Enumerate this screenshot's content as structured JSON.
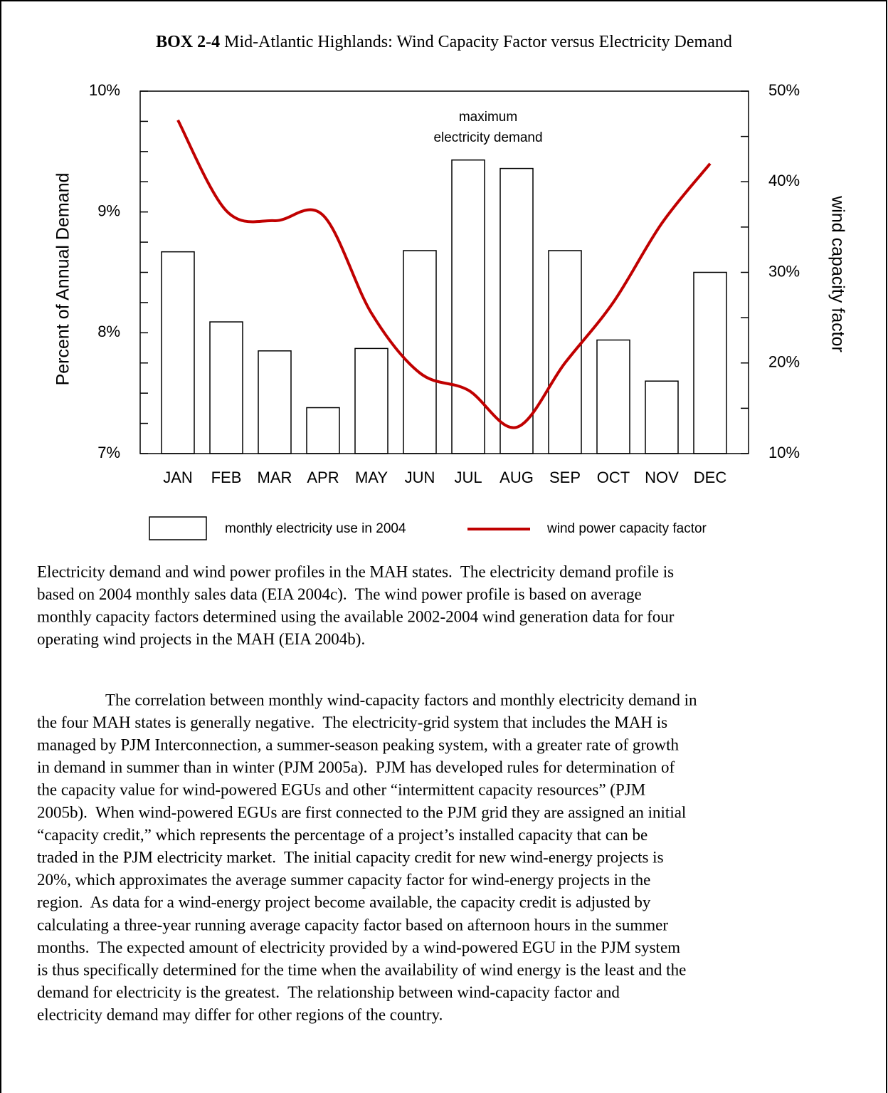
{
  "chart_data": {
    "type": "bar_line",
    "title_label": "BOX 2-4",
    "title": "Mid-Atlantic Highlands: Wind Capacity Factor versus Electricity Demand",
    "ylabel": "Percent of Annual Demand",
    "y2label": "wind capacity factor",
    "annotation": [
      "maximum",
      "electricity demand"
    ],
    "categories": [
      "JAN",
      "FEB",
      "MAR",
      "APR",
      "MAY",
      "JUN",
      "JUL",
      "AUG",
      "SEP",
      "OCT",
      "NOV",
      "DEC"
    ],
    "series": [
      {
        "name": "monthly electricity use in 2004",
        "type": "bar",
        "color": "#ffffff",
        "axis": "y",
        "values": [
          8.67,
          8.09,
          7.85,
          7.38,
          7.87,
          8.68,
          9.43,
          9.36,
          8.68,
          7.94,
          7.6,
          8.5
        ]
      },
      {
        "name": "wind power capacity factor",
        "type": "line",
        "color": "#c00000",
        "axis": "y2",
        "values": [
          46.8,
          36.8,
          35.7,
          36.3,
          25.5,
          18.9,
          17.0,
          12.9,
          20.0,
          26.7,
          35.4,
          42.0
        ]
      }
    ],
    "ylim": [
      7,
      10
    ],
    "yticks": [
      {
        "value": 7,
        "label": "7%"
      },
      {
        "value": 8,
        "label": "8%"
      },
      {
        "value": 9,
        "label": "9%"
      },
      {
        "value": 10,
        "label": "10%"
      }
    ],
    "yminor": [
      7.25,
      7.5,
      7.75,
      8.25,
      8.5,
      8.75,
      9.25,
      9.5,
      9.75
    ],
    "y2lim": [
      10,
      50
    ],
    "y2ticks": [
      {
        "value": 10,
        "label": "10%"
      },
      {
        "value": 20,
        "label": "20%"
      },
      {
        "value": 30,
        "label": "30%"
      },
      {
        "value": 40,
        "label": "40%"
      },
      {
        "value": 50,
        "label": "50%"
      }
    ],
    "y2minor": [
      15,
      25,
      35,
      45
    ]
  },
  "caption": [
    "Electricity demand and wind power profiles in the MAH states.  The electricity demand profile is",
    "based on 2004 monthly sales data (EIA 2004c).  The wind power profile is based on average",
    "monthly capacity factors determined using the available 2002-2004 wind generation data for four",
    "operating wind projects in the MAH (EIA 2004b)."
  ],
  "body": [
    "The correlation between monthly wind-capacity factors and monthly electricity demand in",
    "the four MAH states is generally negative.  The electricity-grid system that includes the MAH is",
    "managed by PJM Interconnection, a summer-season peaking system, with a greater rate of growth",
    "in demand in summer than in winter (PJM 2005a).  PJM has developed rules for determination of",
    "the capacity value for wind-powered EGUs and other “intermittent capacity resources” (PJM",
    "2005b).  When wind-powered EGUs are first connected to the PJM grid they are assigned an initial",
    "“capacity credit,” which represents the percentage of a project’s installed capacity that can be",
    "traded in the PJM electricity market.  The initial capacity credit for new wind-energy projects is",
    "20%, which approximates the average summer capacity factor for wind-energy projects in the",
    "region.  As data for a wind-energy project become available, the capacity credit is adjusted by",
    "calculating a three-year running average capacity factor based on afternoon hours in the summer",
    "months.  The expected amount of electricity provided by a wind-powered EGU in the PJM system",
    "is thus specifically determined for the time when the availability of wind energy is the least and the",
    "demand for electricity is the greatest.  The relationship between wind-capacity factor and",
    "electricity demand may differ for other regions of the country."
  ]
}
